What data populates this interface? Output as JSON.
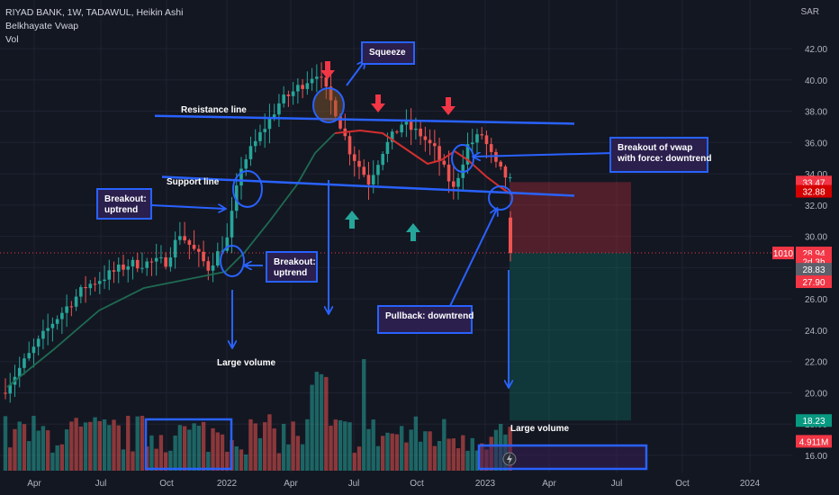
{
  "header": {
    "symbol_line": "RIYAD BANK, 1W, TADAWUL, Heikin Ashi",
    "indicator": "Belkhayate Vwap",
    "volume_label": "Vol",
    "currency": "SAR"
  },
  "chart_data": {
    "type": "candlestick",
    "price_axis": {
      "ticks": [
        "42.00",
        "40.00",
        "38.00",
        "36.00",
        "34.00",
        "32.00",
        "30.00",
        "28.00",
        "26.00",
        "24.00",
        "22.00",
        "20.00",
        "18.00",
        "16.00"
      ],
      "ylim": [
        15.0,
        43.8
      ]
    },
    "time_axis": {
      "ticks": [
        "Apr",
        "Jul",
        "Oct",
        "2022",
        "Apr",
        "Jul",
        "Oct",
        "2023",
        "Apr",
        "Jul",
        "Oct",
        "2024"
      ]
    },
    "price_badges": [
      {
        "label": "33.47",
        "value": 33.47,
        "color": "#f23645"
      },
      {
        "label": "32.88",
        "value": 32.88,
        "color": "#d50000"
      },
      {
        "label": "28.94",
        "value": 28.94,
        "color": "#f23645"
      },
      {
        "label": "2d 3h",
        "value": 28.4,
        "color": "#f23645"
      },
      {
        "label": "28.83",
        "value": 27.9,
        "color": "#5d606b"
      },
      {
        "label": "27.90",
        "value": 27.1,
        "color": "#f23645"
      },
      {
        "label": "18.23",
        "value": 18.23,
        "color": "#089981"
      },
      {
        "label": "4.911M",
        "value": 16.9,
        "color": "#f23645"
      }
    ],
    "tag_1010": "1010",
    "key_levels": {
      "resistance": 37.2,
      "support_start": 33.8,
      "support_end": 32.6
    },
    "position": {
      "entry": 28.94,
      "stop": 33.47,
      "target": 18.23
    },
    "annotations": [
      {
        "id": "squeeze",
        "text": "Squeeze"
      },
      {
        "id": "resistance",
        "text": "Resistance line"
      },
      {
        "id": "support",
        "text": "Support line"
      },
      {
        "id": "breakout-up-1",
        "text": "Breakout:\nuptrend"
      },
      {
        "id": "breakout-up-2",
        "text": "Breakout:\nuptrend"
      },
      {
        "id": "breakout-vwap",
        "text": "Breakout of vwap\nwith force: downtrend"
      },
      {
        "id": "pullback",
        "text": "Pullback: downtrend"
      },
      {
        "id": "large-volume-1",
        "text": "Large volume"
      },
      {
        "id": "large-volume-2",
        "text": "Large volume"
      }
    ],
    "colors": {
      "up": "#26a69a",
      "down": "#ef5350",
      "vwap": "#1e6b52",
      "vwap_down": "#d32f2f",
      "annotation": "#2962ff",
      "label_bg": "#2a1f4d",
      "arrow_down": "#f23645",
      "arrow_up": "#26a69a"
    }
  }
}
